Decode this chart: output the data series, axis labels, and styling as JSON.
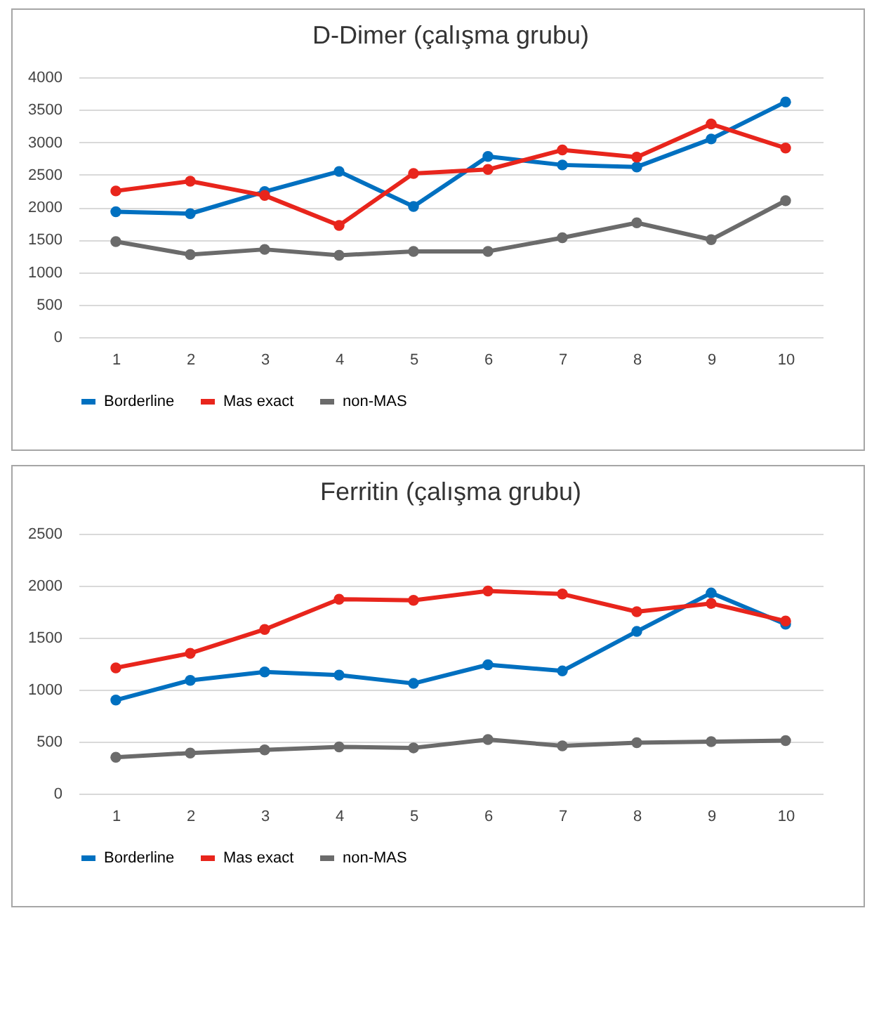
{
  "chart_data": [
    {
      "type": "line",
      "title": "D-Dimer (çalışma grubu)",
      "categories": [
        "1",
        "2",
        "3",
        "4",
        "5",
        "6",
        "7",
        "8",
        "9",
        "10"
      ],
      "ylim": [
        0,
        4000
      ],
      "yticks": [
        0,
        500,
        1000,
        1500,
        2000,
        2500,
        3000,
        3500,
        4000
      ],
      "grid": "y",
      "legend": "bottom",
      "marker": "circle",
      "series": [
        {
          "name": "Borderline",
          "color": "#0070c0",
          "values": [
            1930,
            1900,
            2240,
            2550,
            2010,
            2780,
            2650,
            2620,
            3050,
            3620
          ]
        },
        {
          "name": "Mas exact",
          "color": "#e8251c",
          "values": [
            2250,
            2400,
            2180,
            1720,
            2520,
            2580,
            2880,
            2770,
            3280,
            2910
          ]
        },
        {
          "name": "non-MAS",
          "color": "#6b6b6b",
          "values": [
            1470,
            1270,
            1350,
            1260,
            1320,
            1320,
            1530,
            1760,
            1500,
            2100
          ]
        }
      ]
    },
    {
      "type": "line",
      "title": "Ferritin (çalışma grubu)",
      "categories": [
        "1",
        "2",
        "3",
        "4",
        "5",
        "6",
        "7",
        "8",
        "9",
        "10"
      ],
      "ylim": [
        0,
        2500
      ],
      "yticks": [
        0,
        500,
        1000,
        1500,
        2000,
        2500
      ],
      "grid": "y",
      "legend": "bottom",
      "marker": "circle",
      "series": [
        {
          "name": "Borderline",
          "color": "#0070c0",
          "values": [
            900,
            1090,
            1170,
            1140,
            1060,
            1240,
            1180,
            1560,
            1930,
            1630
          ]
        },
        {
          "name": "Mas exact",
          "color": "#e8251c",
          "values": [
            1210,
            1350,
            1580,
            1870,
            1860,
            1950,
            1920,
            1750,
            1830,
            1660
          ]
        },
        {
          "name": "non-MAS",
          "color": "#6b6b6b",
          "values": [
            350,
            390,
            420,
            450,
            440,
            520,
            460,
            490,
            500,
            510
          ]
        }
      ]
    }
  ]
}
